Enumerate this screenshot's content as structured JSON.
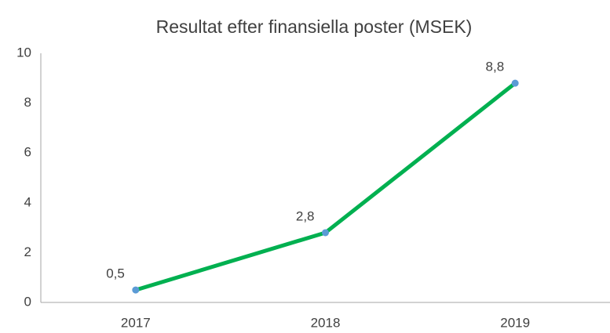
{
  "chart_data": {
    "type": "line",
    "title": "Resultat efter finansiella poster (MSEK)",
    "categories": [
      "2017",
      "2018",
      "2019"
    ],
    "values": [
      0.5,
      2.8,
      8.8
    ],
    "value_labels": [
      "0,5",
      "2,8",
      "8,8"
    ],
    "color": "#00b050",
    "marker_color": "#5b9bd5",
    "ylim": [
      0,
      10
    ],
    "yticks": [
      0,
      2,
      4,
      6,
      8,
      10
    ],
    "grid": false
  }
}
